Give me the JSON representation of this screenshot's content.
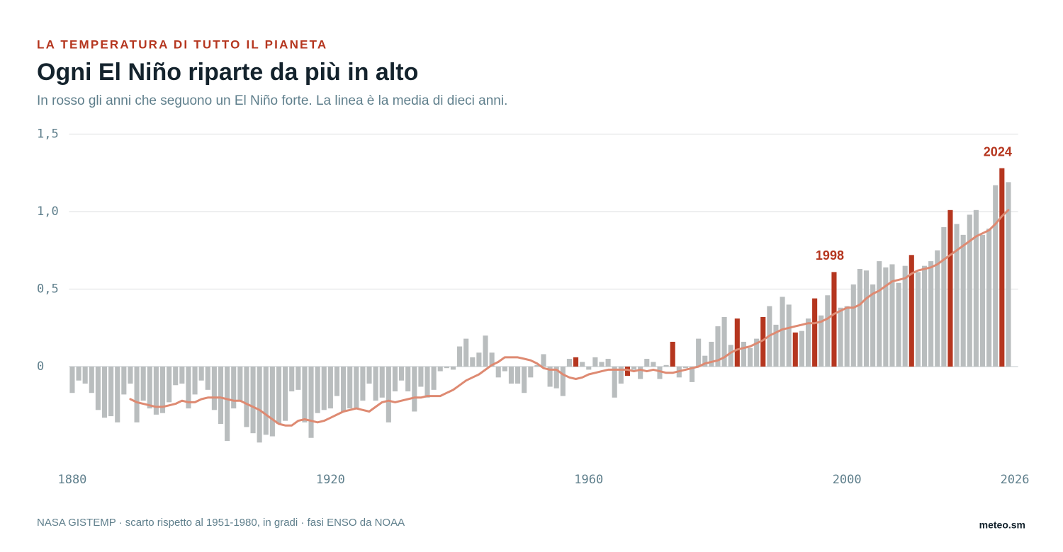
{
  "chart_data": {
    "type": "bar",
    "kicker": "LA TEMPERATURA DI TUTTO IL PIANETA",
    "title": "Ogni El Niño riparte da più in alto",
    "subtitle": "In rosso gli anni che seguono un El Niño forte. La linea è la media di dieci anni.",
    "source": "NASA GISTEMP · scarto rispetto al 1951-1980, in gradi · fasi ENSO da NOAA",
    "credit": "meteo.sm",
    "x": [
      1880,
      1881,
      1882,
      1883,
      1884,
      1885,
      1886,
      1887,
      1888,
      1889,
      1890,
      1891,
      1892,
      1893,
      1894,
      1895,
      1896,
      1897,
      1898,
      1899,
      1900,
      1901,
      1902,
      1903,
      1904,
      1905,
      1906,
      1907,
      1908,
      1909,
      1910,
      1911,
      1912,
      1913,
      1914,
      1915,
      1916,
      1917,
      1918,
      1919,
      1920,
      1921,
      1922,
      1923,
      1924,
      1925,
      1926,
      1927,
      1928,
      1929,
      1930,
      1931,
      1932,
      1933,
      1934,
      1935,
      1936,
      1937,
      1938,
      1939,
      1940,
      1941,
      1942,
      1943,
      1944,
      1945,
      1946,
      1947,
      1948,
      1949,
      1950,
      1951,
      1952,
      1953,
      1954,
      1955,
      1956,
      1957,
      1958,
      1959,
      1960,
      1961,
      1962,
      1963,
      1964,
      1965,
      1966,
      1967,
      1968,
      1969,
      1970,
      1971,
      1972,
      1973,
      1974,
      1975,
      1976,
      1977,
      1978,
      1979,
      1980,
      1981,
      1982,
      1983,
      1984,
      1985,
      1986,
      1987,
      1988,
      1989,
      1990,
      1991,
      1992,
      1993,
      1994,
      1995,
      1996,
      1997,
      1998,
      1999,
      2000,
      2001,
      2002,
      2003,
      2004,
      2005,
      2006,
      2007,
      2008,
      2009,
      2010,
      2011,
      2012,
      2013,
      2014,
      2015,
      2016,
      2017,
      2018,
      2019,
      2020,
      2021,
      2022,
      2023,
      2024,
      2025
    ],
    "values": [
      -0.17,
      -0.09,
      -0.11,
      -0.17,
      -0.28,
      -0.33,
      -0.32,
      -0.36,
      -0.18,
      -0.11,
      -0.36,
      -0.22,
      -0.27,
      -0.31,
      -0.3,
      -0.23,
      -0.12,
      -0.11,
      -0.27,
      -0.18,
      -0.09,
      -0.15,
      -0.28,
      -0.37,
      -0.48,
      -0.27,
      -0.22,
      -0.39,
      -0.43,
      -0.49,
      -0.44,
      -0.45,
      -0.37,
      -0.35,
      -0.16,
      -0.15,
      -0.36,
      -0.46,
      -0.3,
      -0.28,
      -0.27,
      -0.19,
      -0.29,
      -0.27,
      -0.27,
      -0.22,
      -0.11,
      -0.22,
      -0.2,
      -0.36,
      -0.16,
      -0.09,
      -0.16,
      -0.29,
      -0.13,
      -0.2,
      -0.15,
      -0.03,
      -0.01,
      -0.02,
      0.13,
      0.18,
      0.06,
      0.09,
      0.2,
      0.09,
      -0.07,
      -0.03,
      -0.11,
      -0.11,
      -0.17,
      -0.07,
      0.01,
      0.08,
      -0.13,
      -0.14,
      -0.19,
      0.05,
      0.06,
      0.03,
      -0.02,
      0.06,
      0.03,
      0.05,
      -0.2,
      -0.11,
      -0.06,
      -0.02,
      -0.08,
      0.05,
      0.03,
      -0.08,
      0.01,
      0.16,
      -0.07,
      -0.01,
      -0.1,
      0.18,
      0.07,
      0.16,
      0.26,
      0.32,
      0.14,
      0.31,
      0.16,
      0.12,
      0.18,
      0.32,
      0.39,
      0.27,
      0.45,
      0.4,
      0.22,
      0.23,
      0.31,
      0.44,
      0.33,
      0.46,
      0.61,
      0.38,
      0.39,
      0.53,
      0.63,
      0.62,
      0.53,
      0.68,
      0.64,
      0.66,
      0.54,
      0.65,
      0.72,
      0.61,
      0.65,
      0.68,
      0.75,
      0.9,
      1.01,
      0.92,
      0.85,
      0.98,
      1.01,
      0.85,
      0.89,
      1.17,
      1.28,
      1.19
    ],
    "color": "#b9bdbe",
    "highlight": {
      "color": "#b5361f",
      "x": [
        1958,
        1966,
        1973,
        1983,
        1987,
        1992,
        1995,
        1998,
        2010,
        2016,
        2024
      ]
    },
    "line": {
      "color": "#de8a72",
      "values": [
        null,
        null,
        null,
        null,
        null,
        null,
        null,
        null,
        null,
        -0.21,
        -0.23,
        -0.24,
        -0.25,
        -0.26,
        -0.26,
        -0.25,
        -0.24,
        -0.22,
        -0.23,
        -0.23,
        -0.21,
        -0.2,
        -0.2,
        -0.2,
        -0.21,
        -0.22,
        -0.22,
        -0.24,
        -0.26,
        -0.28,
        -0.31,
        -0.34,
        -0.37,
        -0.38,
        -0.38,
        -0.35,
        -0.34,
        -0.35,
        -0.36,
        -0.35,
        -0.33,
        -0.31,
        -0.29,
        -0.28,
        -0.27,
        -0.28,
        -0.29,
        -0.26,
        -0.23,
        -0.22,
        -0.23,
        -0.22,
        -0.21,
        -0.2,
        -0.2,
        -0.19,
        -0.19,
        -0.19,
        -0.17,
        -0.15,
        -0.12,
        -0.09,
        -0.07,
        -0.05,
        -0.02,
        0.01,
        0.03,
        0.06,
        0.06,
        0.06,
        0.05,
        0.04,
        0.02,
        -0.01,
        -0.02,
        -0.02,
        -0.05,
        -0.07,
        -0.08,
        -0.07,
        -0.05,
        -0.04,
        -0.03,
        -0.02,
        -0.02,
        -0.02,
        -0.02,
        -0.03,
        -0.02,
        -0.03,
        -0.02,
        -0.03,
        -0.04,
        -0.04,
        -0.03,
        -0.02,
        -0.01,
        0.0,
        0.02,
        0.03,
        0.04,
        0.06,
        0.09,
        0.11,
        0.12,
        0.13,
        0.15,
        0.17,
        0.2,
        0.22,
        0.24,
        0.25,
        0.26,
        0.27,
        0.28,
        0.28,
        0.29,
        0.31,
        0.34,
        0.36,
        0.38,
        0.38,
        0.4,
        0.44,
        0.47,
        0.49,
        0.52,
        0.55,
        0.56,
        0.57,
        0.6,
        0.62,
        0.63,
        0.64,
        0.66,
        0.69,
        0.72,
        0.75,
        0.78,
        0.81,
        0.84,
        0.86,
        0.88,
        0.92,
        0.97,
        1.01
      ]
    },
    "annotations": [
      {
        "x": 1998,
        "text": "1998"
      },
      {
        "x": 2024,
        "text": "2024"
      }
    ],
    "xlim": [
      1879.5,
      2026.5
    ],
    "xticks": [
      1880,
      1920,
      1960,
      2000,
      2026
    ],
    "ylim": [
      -0.6,
      1.5
    ],
    "yticks": [
      0,
      {
        "value": 0.5,
        "label": "0,5"
      },
      {
        "value": 1,
        "label": "1,0"
      },
      {
        "value": 1.5,
        "label": "1,5"
      }
    ],
    "grid": true
  }
}
